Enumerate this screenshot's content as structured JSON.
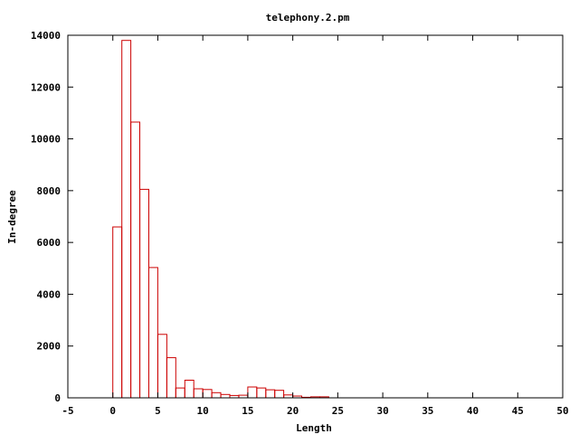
{
  "chart_data": {
    "type": "bar",
    "title": "telephony.2.pm",
    "xlabel": "Length",
    "ylabel": "In-degree",
    "xlim": [
      -5,
      50
    ],
    "ylim": [
      0,
      14000
    ],
    "xticks": [
      -5,
      0,
      5,
      10,
      15,
      20,
      25,
      30,
      35,
      40,
      45,
      50
    ],
    "yticks": [
      0,
      2000,
      4000,
      6000,
      8000,
      10000,
      12000,
      14000
    ],
    "bar_width": 1,
    "bar_color": "#cc0000",
    "grid": false,
    "legend": "none",
    "x": [
      0.5,
      1.5,
      2.5,
      3.5,
      4.5,
      5.5,
      6.5,
      7.5,
      8.5,
      9.5,
      10.5,
      11.5,
      12.5,
      13.5,
      14.5,
      15.5,
      16.5,
      17.5,
      18.5,
      19.5,
      20.5,
      21.5,
      22.5,
      23.5
    ],
    "values": [
      6600,
      13800,
      10650,
      8050,
      5030,
      2450,
      1550,
      380,
      680,
      350,
      320,
      200,
      130,
      90,
      100,
      420,
      380,
      310,
      290,
      110,
      70,
      20,
      40,
      40
    ]
  }
}
